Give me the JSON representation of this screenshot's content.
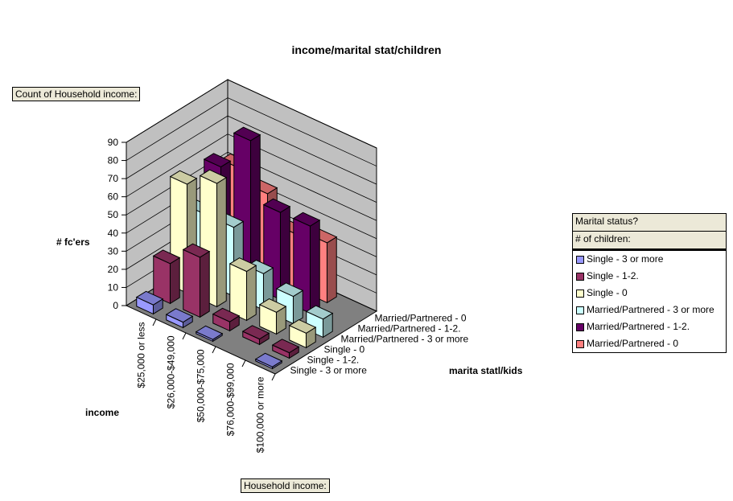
{
  "chart_data": {
    "type": "bar3d",
    "title": "income/marital stat/children",
    "ylabel": "# fc'ers",
    "xlabel": "income",
    "zlabel": "marita statl/kids",
    "ylim": [
      0,
      90
    ],
    "yticks": [
      0,
      10,
      20,
      30,
      40,
      50,
      60,
      70,
      80,
      90
    ],
    "grid": true,
    "legend_position": "right",
    "categories": [
      "$25,000 or less",
      "$26,000-$49,000",
      "$50,000-$75,000",
      "$76,000-$99,000",
      "$100,000 or more"
    ],
    "series": [
      {
        "name": "Single - 3 or more",
        "color": "#9999ff",
        "values": [
          5,
          3,
          1,
          0,
          1
        ]
      },
      {
        "name": "Single - 1-2.",
        "color": "#993366",
        "values": [
          22,
          33,
          5,
          3,
          3
        ]
      },
      {
        "name": "Single - 0",
        "color": "#ffffcc",
        "values": [
          60,
          68,
          27,
          12,
          8
        ]
      },
      {
        "name": "Married/Partnered - 3 or more",
        "color": "#ccffff",
        "values": [
          38,
          38,
          20,
          15,
          10
        ]
      },
      {
        "name": "Married/Partnered - 1-2.",
        "color": "#660066",
        "values": [
          58,
          80,
          48,
          48,
          0
        ]
      },
      {
        "name": "Married/Partnered - 0",
        "color": "#ff8080",
        "values": [
          52,
          45,
          30,
          33,
          0
        ]
      }
    ]
  },
  "fields": {
    "data_field": "Count of Household income:",
    "category_field": "Household income:",
    "series_field_1": "Marital status?",
    "series_field_2": "# of children:"
  }
}
